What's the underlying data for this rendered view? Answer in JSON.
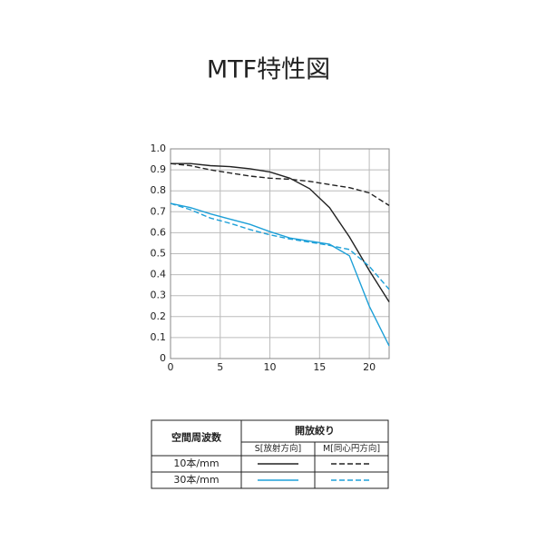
{
  "chart_data": {
    "type": "line",
    "title": "MTF特性図",
    "x": [
      0,
      2,
      4,
      6,
      8,
      10,
      12,
      14,
      16,
      18,
      20,
      22
    ],
    "xlim": [
      0,
      22
    ],
    "xticks": [
      0,
      5,
      10,
      15,
      20
    ],
    "ylim": [
      0,
      1.0
    ],
    "yticks": [
      0,
      0.1,
      0.2,
      0.3,
      0.4,
      0.5,
      0.6,
      0.7,
      0.8,
      0.9,
      {
        "value": 1.0,
        "label": "1.0"
      }
    ],
    "grid": true,
    "series": [
      {
        "color": "#222222",
        "dashed": false,
        "values": [
          0.93,
          0.93,
          0.92,
          0.915,
          0.905,
          0.89,
          0.86,
          0.81,
          0.72,
          0.58,
          0.42,
          0.27
        ]
      },
      {
        "color": "#222222",
        "dashed": true,
        "values": [
          0.93,
          0.92,
          0.9,
          0.885,
          0.87,
          0.86,
          0.855,
          0.845,
          0.83,
          0.815,
          0.79,
          0.73
        ]
      },
      {
        "color": "#1ea0d8",
        "dashed": false,
        "values": [
          0.74,
          0.72,
          0.69,
          0.665,
          0.64,
          0.605,
          0.575,
          0.56,
          0.545,
          0.49,
          0.25,
          0.06
        ]
      },
      {
        "color": "#1ea0d8",
        "dashed": true,
        "values": [
          0.74,
          0.71,
          0.67,
          0.645,
          0.615,
          0.59,
          0.57,
          0.555,
          0.54,
          0.52,
          0.44,
          0.33
        ]
      }
    ],
    "legend": {
      "header": "空間周波数",
      "aperture": "開放絞り",
      "columns": [
        "S[放射方向]",
        "M[同心円方向]"
      ],
      "rows": [
        "10本/mm",
        "30本/mm"
      ]
    }
  }
}
